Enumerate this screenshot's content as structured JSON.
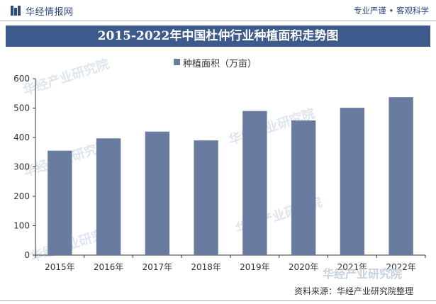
{
  "header": {
    "logo_text": "华经情报网",
    "tagline": "专业严谨 • 客观科学"
  },
  "chart_data": {
    "type": "bar",
    "title": "2015-2022年中国杜仲行业种植面积走势图",
    "categories": [
      "2015年",
      "2016年",
      "2017年",
      "2018年",
      "2019年",
      "2020年",
      "2021年",
      "2022年"
    ],
    "series": [
      {
        "name": "种植面积（万亩）",
        "values": [
          355,
          397,
          420,
          390,
          490,
          458,
          501,
          537
        ]
      }
    ],
    "yticks": [
      0,
      100,
      200,
      300,
      400,
      500,
      600
    ],
    "ylim": [
      0,
      600
    ],
    "legend_position": "top-center",
    "grid": false,
    "bar_color": "#6a7ba0"
  },
  "footer": {
    "source": "资料来源：华经产业研究院整理"
  },
  "watermark": {
    "text": "华经产业研究院",
    "corner_text": "华经产业研究院"
  },
  "colors": {
    "title_band": "#3d5a8c",
    "brand": "#2b4a7e"
  }
}
